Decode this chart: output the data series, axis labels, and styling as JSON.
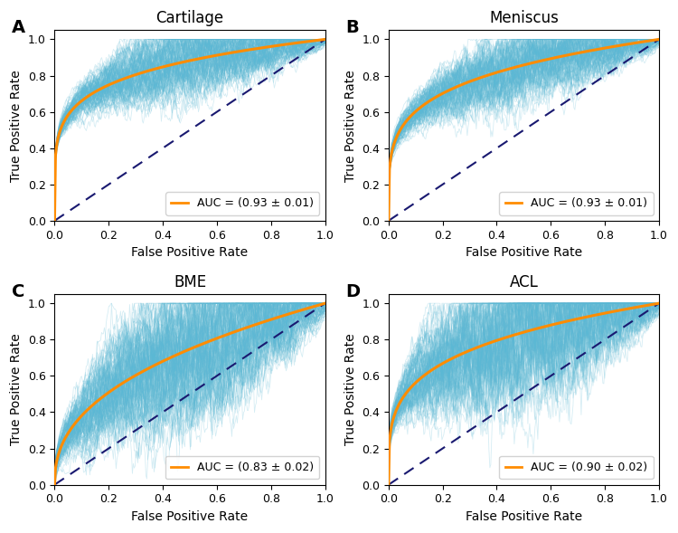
{
  "panels": [
    {
      "label": "A",
      "title": "Cartilage",
      "auc_text": "AUC = (0.93 ± 0.01)",
      "shape": "cartilage",
      "auc": 0.93,
      "std": 0.01
    },
    {
      "label": "B",
      "title": "Meniscus",
      "auc_text": "AUC = (0.93 ± 0.01)",
      "shape": "meniscus",
      "auc": 0.93,
      "std": 0.01
    },
    {
      "label": "C",
      "title": "BME",
      "auc_text": "AUC = (0.83 ± 0.02)",
      "shape": "bme",
      "auc": 0.83,
      "std": 0.02
    },
    {
      "label": "D",
      "title": "ACL",
      "auc_text": "AUC = (0.90 ± 0.02)",
      "shape": "acl",
      "auc": 0.9,
      "std": 0.02
    }
  ],
  "orange_color": "#FF8C00",
  "blue_band_color": "#5BB8D4",
  "diagonal_color": "#191970",
  "background_color": "#ffffff",
  "xlabel": "False Positive Rate",
  "ylabel": "True Positive Rate",
  "n_bootstrap": 120,
  "legend_fontsize": 9,
  "title_fontsize": 12,
  "axis_fontsize": 10,
  "label_fontsize": 14,
  "tick_fontsize": 9
}
